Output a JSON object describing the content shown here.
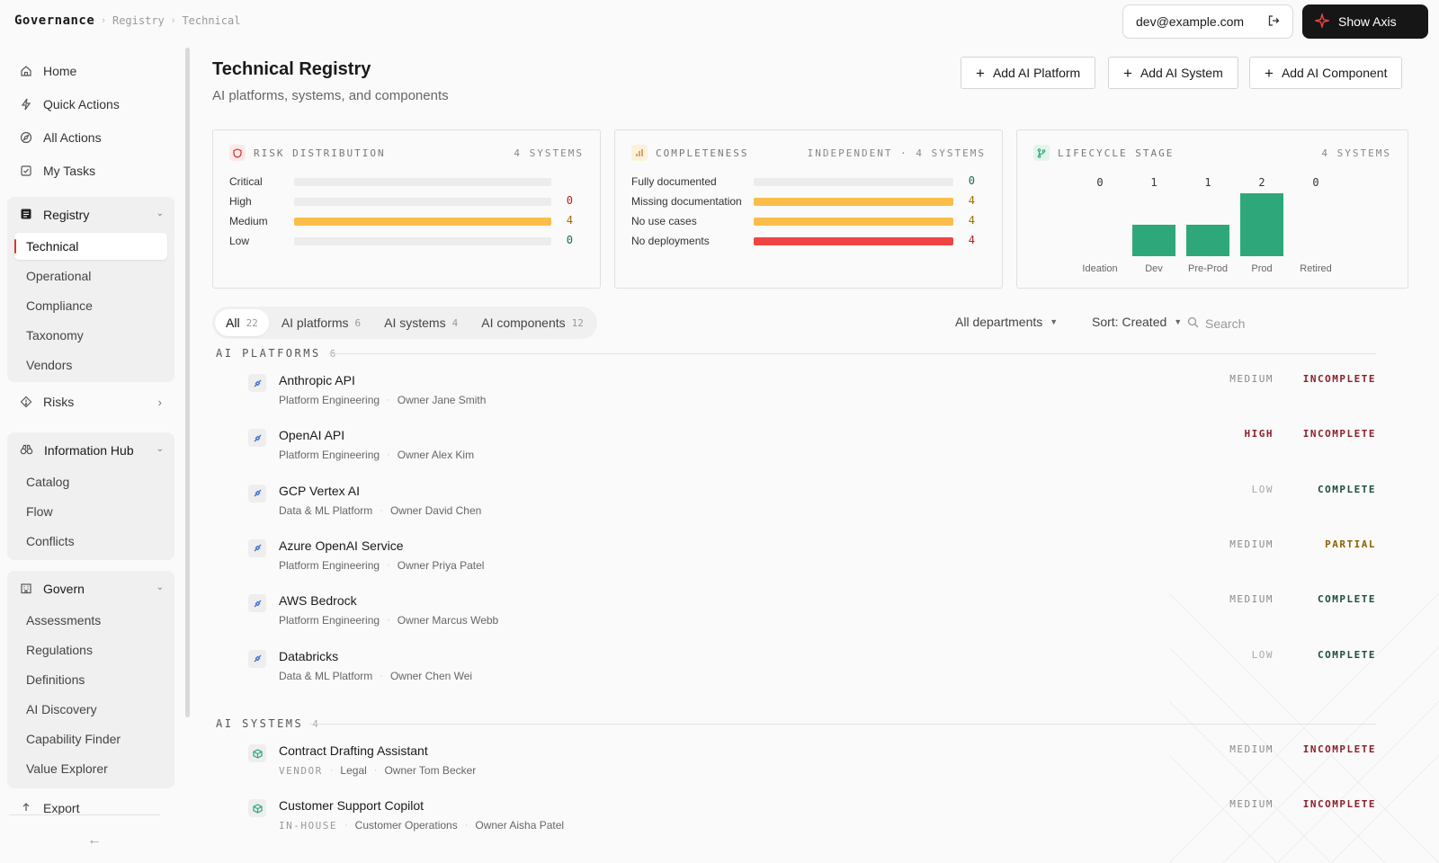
{
  "breadcrumb": {
    "root": "Governance",
    "items": [
      "Registry",
      "Technical"
    ]
  },
  "user": {
    "email": "dev@example.com"
  },
  "header_action": {
    "label": "Show Axis"
  },
  "sidebar": {
    "top_items": [
      {
        "label": "Home",
        "icon": "home-icon"
      },
      {
        "label": "Quick Actions",
        "icon": "lightning-icon"
      },
      {
        "label": "All Actions",
        "icon": "compass-icon"
      },
      {
        "label": "My Tasks",
        "icon": "checkbox-icon"
      }
    ],
    "registry": {
      "label": "Registry",
      "items": [
        "Technical",
        "Operational",
        "Compliance",
        "Taxonomy",
        "Vendors"
      ],
      "active": "Technical"
    },
    "risks": {
      "label": "Risks"
    },
    "information_hub": {
      "label": "Information Hub",
      "items": [
        "Catalog",
        "Flow",
        "Conflicts"
      ]
    },
    "govern": {
      "label": "Govern",
      "items": [
        "Assessments",
        "Regulations",
        "Definitions",
        "AI Discovery",
        "Capability Finder",
        "Value Explorer"
      ]
    },
    "export": {
      "label": "Export"
    }
  },
  "page": {
    "title": "Technical Registry",
    "subtitle": "AI platforms, systems, and components",
    "actions": [
      "Add AI Platform",
      "Add AI System",
      "Add AI Component"
    ]
  },
  "risk_card": {
    "title": "RISK DISTRIBUTION",
    "meta": "4 SYSTEMS",
    "rows": [
      {
        "label": "Critical",
        "value": "",
        "fraction": 0,
        "color": "#f5b945"
      },
      {
        "label": "High",
        "value": "0",
        "fraction": 0,
        "color": "#f5b945",
        "value_color": "#b42318"
      },
      {
        "label": "Medium",
        "value": "4",
        "fraction": 1,
        "color": "#fbbd4a",
        "value_color": "#a46d00"
      },
      {
        "label": "Low",
        "value": "0",
        "fraction": 0,
        "color": "#2ea87a",
        "value_color": "#1a6b4c"
      }
    ]
  },
  "completeness_card": {
    "title": "COMPLETENESS",
    "meta": "INDEPENDENT · 4 SYSTEMS",
    "rows": [
      {
        "label": "Fully documented",
        "value": "0",
        "fraction": 0,
        "color": "#2ea87a",
        "value_color": "#1a6b4c"
      },
      {
        "label": "Missing documentation",
        "value": "4",
        "fraction": 1,
        "color": "#fbbd4a",
        "value_color": "#a46d00"
      },
      {
        "label": "No use cases",
        "value": "4",
        "fraction": 1,
        "color": "#fbbd4a",
        "value_color": "#a46d00"
      },
      {
        "label": "No deployments",
        "value": "4",
        "fraction": 1,
        "color": "#ef4444",
        "value_color": "#b42318"
      }
    ]
  },
  "lifecycle_card": {
    "title": "LIFECYCLE STAGE",
    "meta": "4 SYSTEMS",
    "bar_color": "#2ea87a"
  },
  "chart_data": {
    "type": "bar",
    "categories": [
      "Ideation",
      "Dev",
      "Pre-Prod",
      "Prod",
      "Retired"
    ],
    "values": [
      0,
      1,
      1,
      2,
      0
    ],
    "ylim": [
      0,
      2
    ]
  },
  "filters": {
    "tabs": [
      {
        "label": "All",
        "count": "22"
      },
      {
        "label": "AI platforms",
        "count": "6"
      },
      {
        "label": "AI systems",
        "count": "4"
      },
      {
        "label": "AI components",
        "count": "12"
      }
    ],
    "department": "All departments",
    "sort": "Sort: Created",
    "search_placeholder": "Search"
  },
  "status_colors": {
    "INCOMPLETE": "#8b1f2a",
    "COMPLETE": "#1f4d3a",
    "PARTIAL": "#8a6200",
    "HIGH": "#8b1f2a",
    "MEDIUM": "#8a8a8a",
    "LOW": "#a8a8a8"
  },
  "sections": [
    {
      "title": "AI PLATFORMS",
      "count": "6",
      "icon": "plug-icon",
      "rows": [
        {
          "name": "Anthropic API",
          "tag": "",
          "dept": "Platform Engineering",
          "owner": "Owner Jane Smith",
          "risk": "MEDIUM",
          "status": "INCOMPLETE"
        },
        {
          "name": "OpenAI API",
          "tag": "",
          "dept": "Platform Engineering",
          "owner": "Owner Alex Kim",
          "risk": "HIGH",
          "status": "INCOMPLETE"
        },
        {
          "name": "GCP Vertex AI",
          "tag": "",
          "dept": "Data & ML Platform",
          "owner": "Owner David Chen",
          "risk": "LOW",
          "status": "COMPLETE"
        },
        {
          "name": "Azure OpenAI Service",
          "tag": "",
          "dept": "Platform Engineering",
          "owner": "Owner Priya Patel",
          "risk": "MEDIUM",
          "status": "PARTIAL"
        },
        {
          "name": "AWS Bedrock",
          "tag": "",
          "dept": "Platform Engineering",
          "owner": "Owner Marcus Webb",
          "risk": "MEDIUM",
          "status": "COMPLETE"
        },
        {
          "name": "Databricks",
          "tag": "",
          "dept": "Data & ML Platform",
          "owner": "Owner Chen Wei",
          "risk": "LOW",
          "status": "COMPLETE"
        }
      ]
    },
    {
      "title": "AI SYSTEMS",
      "count": "4",
      "icon": "cube-icon",
      "rows": [
        {
          "name": "Contract Drafting Assistant",
          "tag": "VENDOR",
          "dept": "Legal",
          "owner": "Owner Tom Becker",
          "risk": "MEDIUM",
          "status": "INCOMPLETE"
        },
        {
          "name": "Customer Support Copilot",
          "tag": "IN-HOUSE",
          "dept": "Customer Operations",
          "owner": "Owner Aisha Patel",
          "risk": "MEDIUM",
          "status": "INCOMPLETE"
        }
      ]
    }
  ]
}
